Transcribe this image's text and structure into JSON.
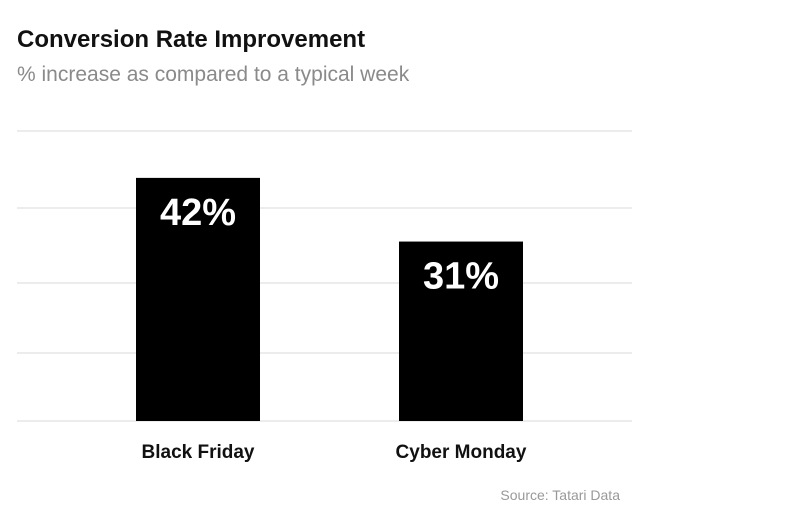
{
  "chart_data": {
    "type": "bar",
    "title": "Conversion Rate Improvement",
    "subtitle": "% increase as compared to a typical week",
    "categories": [
      "Black Friday",
      "Cyber Monday"
    ],
    "values": [
      42,
      31
    ],
    "data_labels": [
      "42%",
      "31%"
    ],
    "xlabel": "",
    "ylabel": "",
    "ylim": [
      0,
      50
    ],
    "grid": true,
    "bar_color": "#000000",
    "source": "Source: Tatari Data"
  }
}
